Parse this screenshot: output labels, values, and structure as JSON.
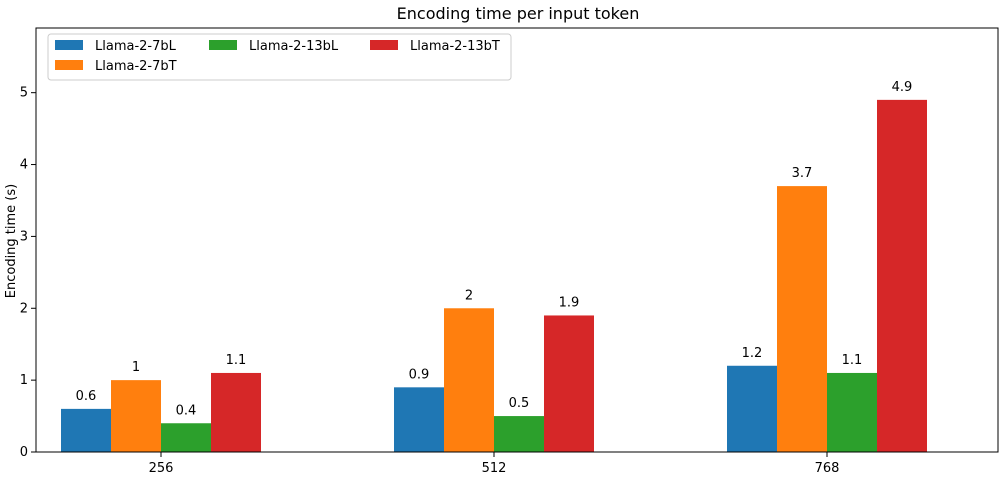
{
  "chart_data": {
    "type": "bar",
    "title": "Encoding time per input token",
    "xlabel": "",
    "ylabel": "Encoding time (s)",
    "categories": [
      "256",
      "512",
      "768"
    ],
    "series": [
      {
        "name": "Llama-2-7bL",
        "color": "#1f77b4",
        "values": [
          0.6,
          0.9,
          1.2
        ],
        "labels": [
          "0.6",
          "0.9",
          "1.2"
        ]
      },
      {
        "name": "Llama-2-7bT",
        "color": "#ff7f0e",
        "values": [
          1.0,
          2.0,
          3.7
        ],
        "labels": [
          "1",
          "2",
          "3.7"
        ]
      },
      {
        "name": "Llama-2-13bL",
        "color": "#2ca02c",
        "values": [
          0.4,
          0.5,
          1.1
        ],
        "labels": [
          "0.4",
          "0.5",
          "1.1"
        ]
      },
      {
        "name": "Llama-2-13bT",
        "color": "#d62728",
        "values": [
          1.1,
          1.9,
          4.9
        ],
        "labels": [
          "1.1",
          "1.9",
          "4.9"
        ]
      }
    ],
    "ylim": [
      0,
      5.9
    ],
    "yticks": [
      "0",
      "1",
      "2",
      "3",
      "4",
      "5"
    ],
    "grid": false,
    "legend": "top-left"
  }
}
